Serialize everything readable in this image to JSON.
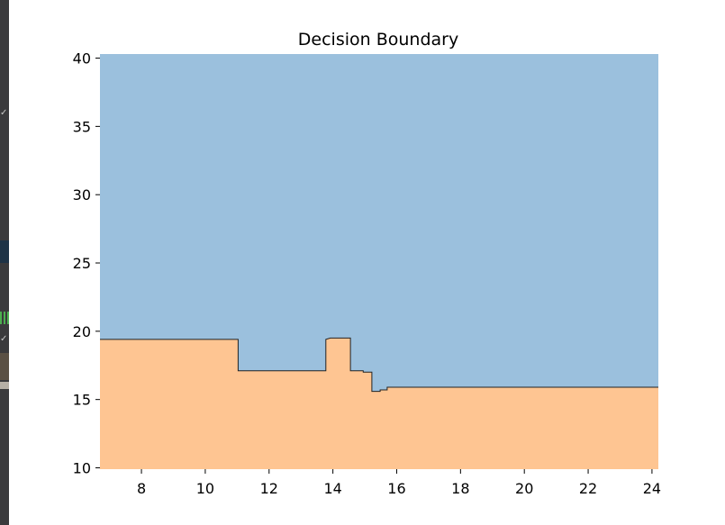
{
  "chart_data": {
    "type": "area",
    "title": "Decision Boundary",
    "xlabel": "",
    "ylabel": "",
    "xlim": [
      6.7,
      24.2
    ],
    "ylim": [
      9.9,
      40.3
    ],
    "xticks": [
      8,
      10,
      12,
      14,
      16,
      18,
      20,
      22,
      24
    ],
    "yticks": [
      10,
      15,
      20,
      25,
      30,
      35,
      40
    ],
    "grid": false,
    "regions": [
      {
        "name": "",
        "color": "#9bc0dd",
        "position": "above boundary"
      },
      {
        "name": "",
        "color": "#fec592",
        "position": "below boundary"
      }
    ],
    "boundary": {
      "x": [
        6.7,
        11.03,
        11.03,
        13.78,
        13.78,
        13.92,
        14.55,
        14.55,
        14.95,
        14.95,
        15.22,
        15.22,
        15.48,
        15.48,
        15.7,
        15.7,
        24.2
      ],
      "y": [
        19.4,
        19.4,
        17.1,
        17.1,
        19.4,
        19.5,
        19.5,
        17.1,
        17.1,
        17.0,
        17.0,
        15.6,
        15.6,
        15.7,
        15.7,
        15.9,
        15.9
      ]
    }
  },
  "window": {
    "side_strip_colors": [
      "#3a3a3c",
      "#1e3346",
      "#5a5044",
      "#b6b0a6"
    ]
  }
}
